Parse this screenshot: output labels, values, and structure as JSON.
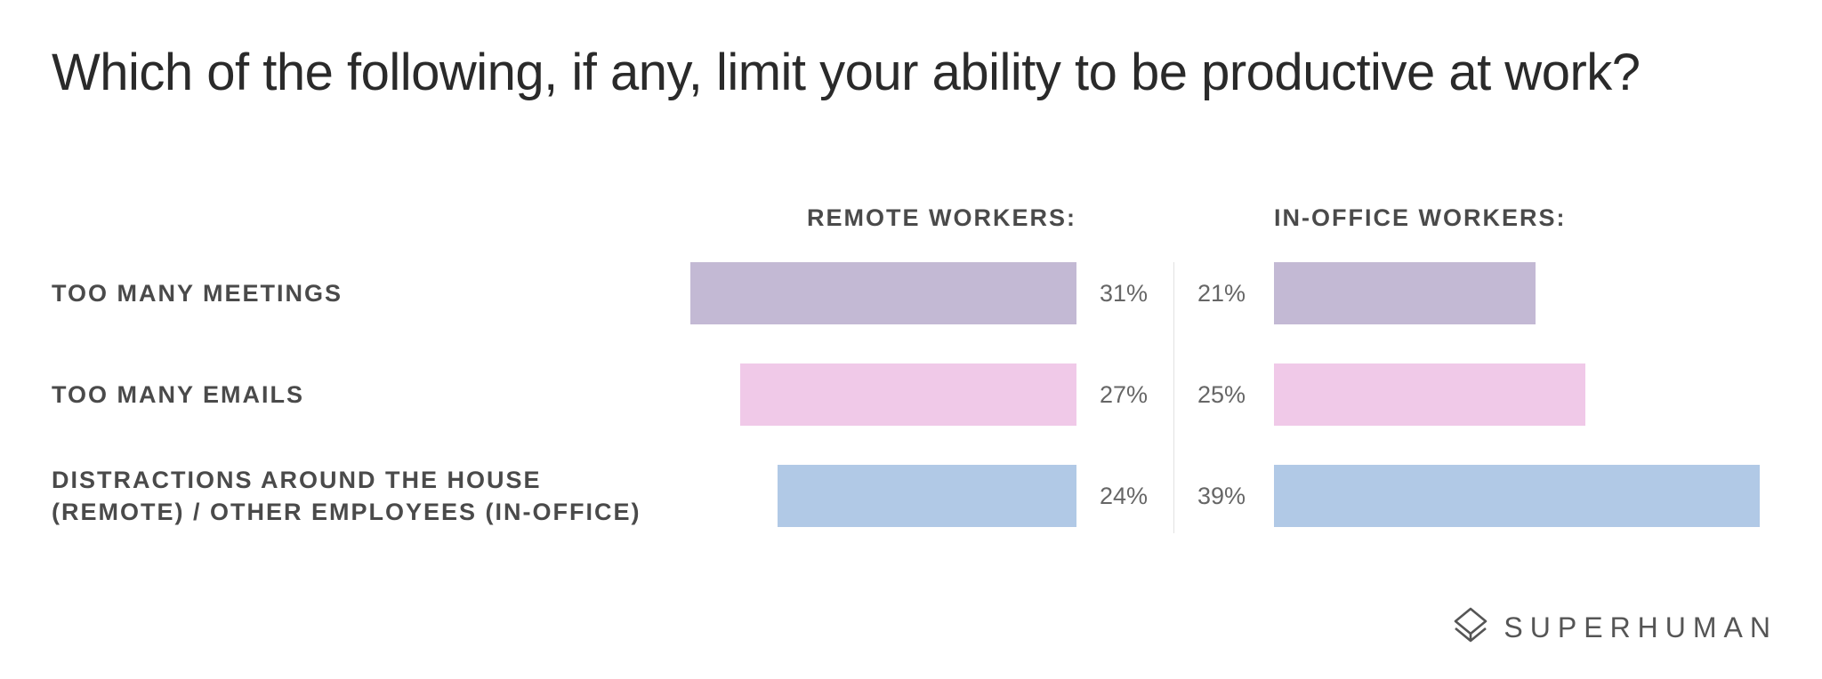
{
  "title": "Which of the following, if any, limit your ability to be productive at work?",
  "brand": {
    "name": "SUPERHUMAN",
    "logo_icon": "superhuman-logo-icon"
  },
  "chart_data": {
    "type": "bar",
    "title": "Which of the following, if any, limit your ability to be productive at work?",
    "categories": [
      "TOO MANY MEETINGS",
      "TOO MANY EMAILS",
      "DISTRACTIONS AROUND THE HOUSE (REMOTE) / OTHER EMPLOYEES (IN-OFFICE)"
    ],
    "category_lines": [
      [
        "TOO MANY MEETINGS"
      ],
      [
        "TOO MANY EMAILS"
      ],
      [
        "DISTRACTIONS AROUND THE HOUSE",
        "(REMOTE) / OTHER EMPLOYEES (IN-OFFICE)"
      ]
    ],
    "series": [
      {
        "name": "REMOTE WORKERS:",
        "values": [
          31,
          27,
          24
        ],
        "labels": [
          "31%",
          "27%",
          "24%"
        ]
      },
      {
        "name": "IN-OFFICE WORKERS:",
        "values": [
          21,
          25,
          39
        ],
        "labels": [
          "21%",
          "25%",
          "39%"
        ]
      }
    ],
    "unit": "%",
    "bar_colors": [
      "#c3b9d4",
      "#f0c9e8",
      "#b1c9e6"
    ],
    "orientation": "horizontal",
    "layout": "back-to-back (remote bars extend left, in-office bars extend right)",
    "grid": false,
    "legend": "column headers above each side"
  }
}
